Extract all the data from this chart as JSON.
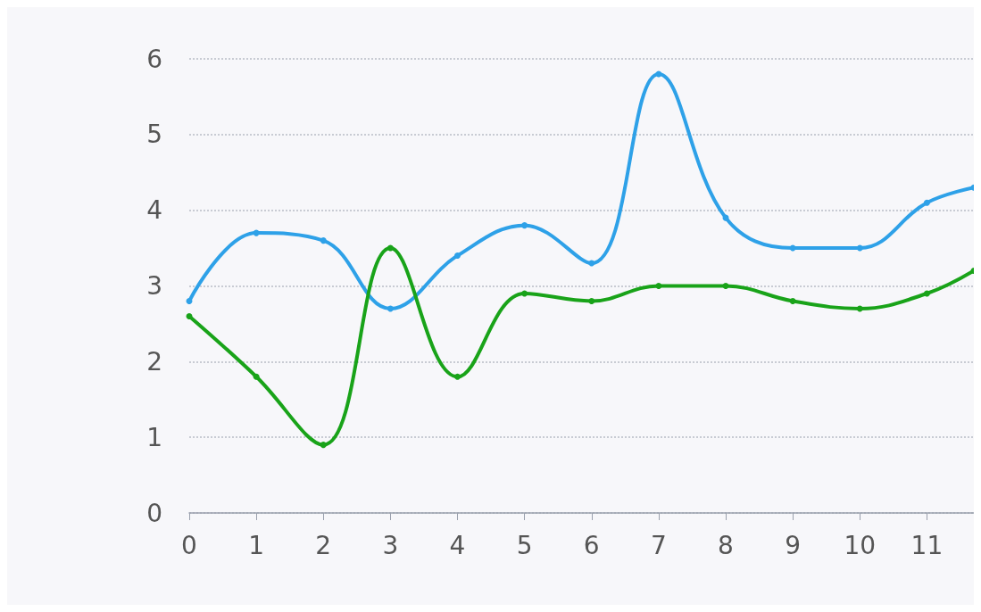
{
  "chart_data": {
    "type": "line",
    "x": [
      0,
      1,
      2,
      3,
      4,
      5,
      6,
      7,
      8,
      9,
      10,
      11,
      11.7
    ],
    "series": [
      {
        "color": "#2ea1e8",
        "values": [
          2.8,
          3.7,
          3.6,
          2.7,
          3.4,
          3.8,
          3.3,
          5.8,
          3.9,
          3.5,
          3.5,
          4.1,
          4.3
        ]
      },
      {
        "color": "#19a319",
        "values": [
          2.6,
          1.8,
          0.9,
          3.5,
          1.8,
          2.9,
          2.8,
          3.0,
          3.0,
          2.8,
          2.7,
          2.9,
          3.2
        ]
      }
    ],
    "xlim": [
      0,
      11.7
    ],
    "xticks": [
      0,
      1,
      2,
      3,
      4,
      5,
      6,
      7,
      8,
      9,
      10,
      11
    ],
    "ylim": [
      0,
      6
    ],
    "yticks": [
      0,
      1,
      2,
      3,
      4,
      5,
      6
    ],
    "grid": "y",
    "marker": "circle",
    "line_style": "solid"
  }
}
